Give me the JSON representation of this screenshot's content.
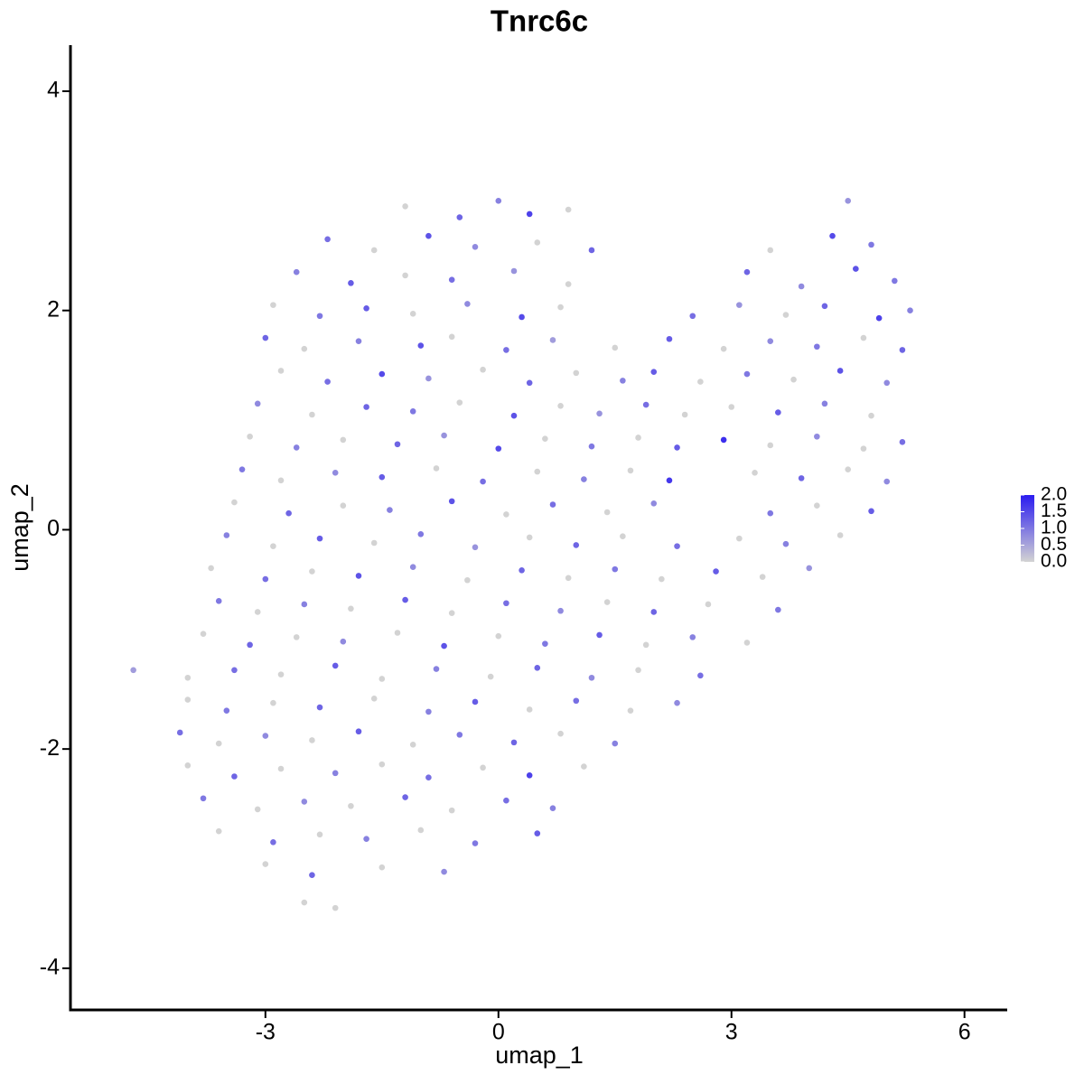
{
  "chart_data": {
    "type": "scatter",
    "title": "Tnrc6c",
    "x_label": "umap_1",
    "y_label": "umap_2",
    "xlim": [
      -5.51,
      6.55
    ],
    "ylim": [
      -4.38,
      4.42
    ],
    "xticks": [
      -3,
      0,
      3,
      6
    ],
    "yticks": [
      -4,
      -2,
      0,
      2,
      4
    ],
    "low_color": "#d3d3d3",
    "high_color": "#2b1cf0",
    "colorbar": {
      "lim": [
        0,
        2
      ],
      "ticks": [
        {
          "value": 0,
          "label": "0.0"
        },
        0.5,
        {
          "value": 1,
          "label": "1.0"
        },
        1.5,
        {
          "value": 2,
          "label": "2.0"
        }
      ]
    },
    "x": [
      -1.2,
      -0.5,
      0,
      0.4,
      0.9,
      4.5,
      -2.2,
      -1.6,
      -0.9,
      -0.3,
      0.5,
      1.2,
      3.5,
      4.3,
      4.8,
      -2.6,
      -1.9,
      -1.2,
      -0.6,
      0.2,
      0.9,
      3.2,
      3.9,
      4.6,
      5.1,
      -2.9,
      -2.3,
      -1.7,
      -1.1,
      -0.4,
      0.3,
      0.8,
      2.5,
      3.1,
      3.7,
      4.2,
      4.9,
      5.3,
      -3.0,
      -2.5,
      -1.8,
      -1.0,
      -0.6,
      0.1,
      0.7,
      1.5,
      2.2,
      2.9,
      3.5,
      4.1,
      4.7,
      5.2,
      -2.8,
      -2.2,
      -1.5,
      -0.9,
      -0.2,
      0.4,
      1.0,
      1.6,
      2.0,
      2.6,
      3.2,
      3.8,
      4.4,
      5.0,
      -3.1,
      -2.4,
      -1.7,
      -1.1,
      -0.5,
      0.2,
      0.8,
      1.3,
      1.9,
      2.4,
      3.0,
      3.6,
      4.2,
      4.8,
      -3.2,
      -2.6,
      -2.0,
      -1.3,
      -0.7,
      0,
      0.6,
      1.2,
      1.8,
      2.3,
      2.9,
      3.5,
      4.1,
      4.7,
      5.2,
      -3.3,
      -2.8,
      -2.1,
      -1.5,
      -0.8,
      -0.2,
      0.5,
      1.1,
      1.7,
      2.2,
      3.3,
      3.9,
      4.5,
      5.0,
      -3.4,
      -2.7,
      -2.0,
      -1.4,
      -0.6,
      0.1,
      0.7,
      1.4,
      2.0,
      3.5,
      4.1,
      4.8,
      -3.5,
      -2.9,
      -2.3,
      -1.6,
      -1.0,
      -0.3,
      0.4,
      1.0,
      1.6,
      2.3,
      3.1,
      3.7,
      4.4,
      -3.7,
      -3.0,
      -2.4,
      -1.8,
      -1.1,
      -0.4,
      0.3,
      0.9,
      1.5,
      2.1,
      2.8,
      3.4,
      4.0,
      -3.6,
      -3.1,
      -2.5,
      -1.9,
      -1.2,
      -0.6,
      0.1,
      0.8,
      1.4,
      2.0,
      2.7,
      3.6,
      -3.8,
      -3.2,
      -2.6,
      -2.0,
      -1.3,
      -0.7,
      0,
      0.6,
      1.3,
      1.9,
      2.5,
      3.2,
      -4.7,
      -4.0,
      -3.4,
      -2.8,
      -2.1,
      -1.5,
      -0.8,
      -0.1,
      0.5,
      1.2,
      1.8,
      2.6,
      -4.0,
      -3.5,
      -2.9,
      -2.3,
      -1.6,
      -0.9,
      -0.3,
      0.4,
      1.0,
      1.7,
      2.3,
      -4.1,
      -3.6,
      -3.0,
      -2.4,
      -1.8,
      -1.1,
      -0.5,
      0.2,
      0.8,
      1.5,
      -4.0,
      -3.4,
      -2.8,
      -2.1,
      -1.5,
      -0.9,
      -0.2,
      0.4,
      1.1,
      -3.8,
      -3.1,
      -2.5,
      -1.9,
      -1.2,
      -0.6,
      0.1,
      0.7,
      -3.6,
      -2.9,
      -2.3,
      -1.7,
      -1.0,
      -0.3,
      0.5,
      -3.0,
      -2.4,
      -1.5,
      -0.7,
      -2.5,
      -2.1
    ],
    "y": [
      2.95,
      2.85,
      3.0,
      2.88,
      2.92,
      3.0,
      2.65,
      2.55,
      2.68,
      2.58,
      2.62,
      2.55,
      2.55,
      2.68,
      2.6,
      2.35,
      2.25,
      2.32,
      2.28,
      2.36,
      2.24,
      2.35,
      2.22,
      2.38,
      2.27,
      2.05,
      1.95,
      2.02,
      1.97,
      2.06,
      1.94,
      2.03,
      1.95,
      2.05,
      1.96,
      2.04,
      1.93,
      2.0,
      1.75,
      1.65,
      1.72,
      1.68,
      1.76,
      1.64,
      1.73,
      1.66,
      1.74,
      1.65,
      1.72,
      1.67,
      1.75,
      1.64,
      1.45,
      1.35,
      1.42,
      1.38,
      1.46,
      1.34,
      1.43,
      1.36,
      1.44,
      1.35,
      1.42,
      1.37,
      1.45,
      1.34,
      1.15,
      1.05,
      1.12,
      1.08,
      1.16,
      1.04,
      1.13,
      1.06,
      1.14,
      1.05,
      1.12,
      1.07,
      1.15,
      1.04,
      0.85,
      0.75,
      0.82,
      0.78,
      0.86,
      0.74,
      0.83,
      0.76,
      0.84,
      0.75,
      0.82,
      0.77,
      0.85,
      0.74,
      0.8,
      0.55,
      0.45,
      0.52,
      0.48,
      0.56,
      0.44,
      0.53,
      0.46,
      0.54,
      0.45,
      0.52,
      0.47,
      0.55,
      0.44,
      0.25,
      0.15,
      0.22,
      0.18,
      0.26,
      0.14,
      0.23,
      0.16,
      0.24,
      0.15,
      0.22,
      0.17,
      -0.05,
      -0.15,
      -0.08,
      -0.12,
      -0.04,
      -0.16,
      -0.07,
      -0.14,
      -0.06,
      -0.15,
      -0.08,
      -0.13,
      -0.05,
      -0.35,
      -0.45,
      -0.38,
      -0.42,
      -0.34,
      -0.46,
      -0.37,
      -0.44,
      -0.36,
      -0.45,
      -0.38,
      -0.43,
      -0.35,
      -0.65,
      -0.75,
      -0.68,
      -0.72,
      -0.64,
      -0.76,
      -0.67,
      -0.74,
      -0.66,
      -0.75,
      -0.68,
      -0.73,
      -0.95,
      -1.05,
      -0.98,
      -1.02,
      -0.94,
      -1.06,
      -0.97,
      -1.04,
      -0.96,
      -1.05,
      -0.98,
      -1.03,
      -1.28,
      -1.35,
      -1.28,
      -1.32,
      -1.24,
      -1.36,
      -1.27,
      -1.34,
      -1.26,
      -1.35,
      -1.28,
      -1.33,
      -1.55,
      -1.65,
      -1.58,
      -1.62,
      -1.54,
      -1.66,
      -1.57,
      -1.64,
      -1.56,
      -1.65,
      -1.58,
      -1.85,
      -1.95,
      -1.88,
      -1.92,
      -1.84,
      -1.96,
      -1.87,
      -1.94,
      -1.86,
      -1.95,
      -2.15,
      -2.25,
      -2.18,
      -2.22,
      -2.14,
      -2.26,
      -2.17,
      -2.24,
      -2.16,
      -2.45,
      -2.55,
      -2.48,
      -2.52,
      -2.44,
      -2.56,
      -2.47,
      -2.54,
      -2.75,
      -2.85,
      -2.78,
      -2.82,
      -2.74,
      -2.86,
      -2.77,
      -3.05,
      -3.15,
      -3.08,
      -3.12,
      -3.4,
      -3.45
    ],
    "values": [
      0,
      1.2,
      0.9,
      1.6,
      0,
      0.7,
      1.1,
      0,
      1.4,
      0.8,
      0,
      1.2,
      0,
      1.5,
      1.0,
      0.9,
      1.3,
      0,
      1.1,
      0.7,
      0,
      1.2,
      0.8,
      1.4,
      1.0,
      0,
      1.0,
      1.3,
      0,
      0.8,
      1.5,
      0,
      1.1,
      0.7,
      0,
      1.2,
      1.6,
      0.9,
      1.2,
      0,
      0.9,
      1.4,
      0,
      1.1,
      0.6,
      0,
      1.3,
      0,
      0.8,
      1.0,
      0,
      1.2,
      0,
      1.1,
      1.5,
      0.7,
      0,
      1.2,
      0,
      0.9,
      1.3,
      0,
      1.0,
      0,
      1.4,
      0.8,
      0.8,
      0,
      1.2,
      1.0,
      0,
      1.4,
      0,
      0.7,
      1.1,
      0,
      0,
      1.3,
      0.9,
      0,
      0,
      0.9,
      0,
      1.2,
      0.7,
      1.5,
      0,
      1.0,
      0,
      1.3,
      1.8,
      0,
      0.8,
      0,
      1.1,
      1.0,
      0,
      0.8,
      1.3,
      0,
      1.1,
      0,
      0.9,
      0,
      1.7,
      0,
      1.2,
      0,
      0.8,
      0,
      1.2,
      0,
      0.9,
      1.4,
      0,
      1.1,
      0,
      0.8,
      1.0,
      0,
      1.3,
      0.9,
      0,
      1.3,
      0,
      1.0,
      0.7,
      0,
      1.2,
      0,
      1.1,
      0,
      0.9,
      0,
      0,
      1.1,
      0,
      1.4,
      0.8,
      0,
      1.2,
      0,
      1.0,
      0,
      1.3,
      0,
      0.7,
      1.0,
      0,
      0.9,
      0,
      1.3,
      0,
      1.1,
      0.8,
      0,
      1.2,
      0,
      1.0,
      0,
      1.2,
      0,
      0.8,
      0,
      1.4,
      0,
      1.0,
      1.3,
      0,
      0.9,
      0,
      0.6,
      0,
      1.1,
      0,
      1.3,
      0,
      0.9,
      0,
      1.2,
      0.8,
      0,
      1.1,
      0,
      1.0,
      0,
      1.2,
      0,
      0.9,
      1.3,
      0,
      1.1,
      0,
      0.8,
      1.1,
      0,
      0.8,
      0,
      1.3,
      0,
      1.0,
      1.2,
      0,
      0.9,
      0,
      1.2,
      0,
      0.9,
      0,
      1.1,
      0,
      1.6,
      0,
      1.0,
      0,
      0.8,
      0,
      1.2,
      0,
      1.1,
      0.9,
      0,
      1.1,
      0,
      0.9,
      0,
      1.0,
      1.3,
      0,
      1.2,
      0,
      0.8,
      0,
      0
    ]
  }
}
